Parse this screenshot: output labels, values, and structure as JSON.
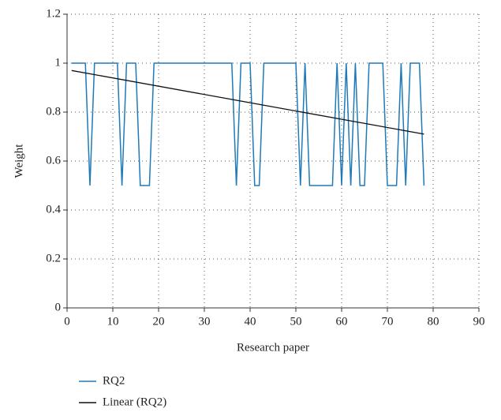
{
  "chart_data": {
    "type": "line",
    "xlabel": "Research paper",
    "ylabel": "Weight",
    "xlim": [
      0,
      90
    ],
    "xticks": [
      0,
      10,
      20,
      30,
      40,
      50,
      60,
      70,
      80,
      90
    ],
    "ylim": [
      0,
      1.2
    ],
    "yticks": [
      {
        "value": 0,
        "label": "0"
      },
      {
        "value": 0.2,
        "label": "0.2"
      },
      {
        "value": 0.4,
        "label": "0.4"
      },
      {
        "value": 0.6,
        "label": "0.6"
      },
      {
        "value": 0.8,
        "label": "0.8"
      },
      {
        "value": 1,
        "label": "1"
      },
      {
        "value": 1.2,
        "label": "1.2"
      }
    ],
    "grid": true,
    "legend": "bottom",
    "series": [
      {
        "name": "RQ2",
        "color": "#1f7ab8",
        "x": [
          1,
          2,
          3,
          4,
          5,
          6,
          7,
          8,
          9,
          10,
          11,
          12,
          13,
          14,
          15,
          16,
          17,
          18,
          19,
          20,
          21,
          22,
          23,
          24,
          25,
          26,
          27,
          28,
          29,
          30,
          31,
          32,
          33,
          34,
          35,
          36,
          37,
          38,
          39,
          40,
          41,
          42,
          43,
          44,
          45,
          46,
          47,
          48,
          49,
          50,
          51,
          52,
          53,
          54,
          55,
          56,
          57,
          58,
          59,
          60,
          61,
          62,
          63,
          64,
          65,
          66,
          67,
          68,
          69,
          70,
          71,
          72,
          73,
          74,
          75,
          76,
          77,
          78
        ],
        "values": [
          1,
          1,
          1,
          1,
          0.5,
          1,
          1,
          1,
          1,
          1,
          1,
          0.5,
          1,
          1,
          1,
          0.5,
          0.5,
          0.5,
          1,
          1,
          1,
          1,
          1,
          1,
          1,
          1,
          1,
          1,
          1,
          1,
          1,
          1,
          1,
          1,
          1,
          1,
          0.5,
          1,
          1,
          1,
          0.5,
          0.5,
          1,
          1,
          1,
          1,
          1,
          1,
          1,
          1,
          0.5,
          1,
          0.5,
          0.5,
          0.5,
          0.5,
          0.5,
          0.5,
          1,
          0.5,
          1,
          0.5,
          1,
          0.5,
          0.5,
          1,
          1,
          1,
          1,
          0.5,
          0.5,
          0.5,
          1,
          0.5,
          1,
          1,
          1,
          0.5
        ]
      },
      {
        "name": "Linear (RQ2)",
        "color": "#111111",
        "x": [
          1,
          78
        ],
        "values": [
          0.97,
          0.71
        ]
      }
    ]
  }
}
